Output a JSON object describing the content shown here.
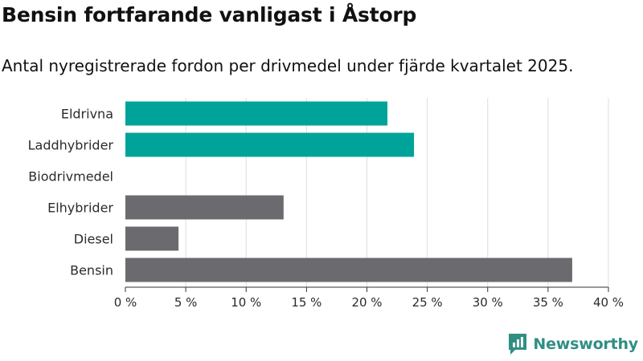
{
  "title": "Bensin fortfarande vanligast i Åstorp",
  "subtitle": "Antal nyregistrerade fordon per drivmedel under fjärde kvartalet 2025.",
  "brand": {
    "name": "Newsworthy",
    "color": "#2f8f83",
    "icon": "newsworthy-logo-icon"
  },
  "colors": {
    "electric": "#00a39a",
    "other": "#6b6a6f",
    "grid": "#dddddd",
    "axis": "#333333"
  },
  "chart_data": {
    "type": "bar",
    "orientation": "horizontal",
    "categories": [
      "Eldrivna",
      "Laddhybrider",
      "Biodrivmedel",
      "Elhybrider",
      "Diesel",
      "Bensin"
    ],
    "values": [
      21.7,
      23.9,
      0,
      13.1,
      4.4,
      37.0
    ],
    "groups": [
      "electric",
      "electric",
      "electric",
      "other",
      "other",
      "other"
    ],
    "xlim": [
      0,
      40
    ],
    "xticks": [
      0,
      5,
      10,
      15,
      20,
      25,
      30,
      35,
      40
    ],
    "xtick_labels": [
      "0 %",
      "5 %",
      "10 %",
      "15 %",
      "20 %",
      "25 %",
      "30 %",
      "35 %",
      "40 %"
    ],
    "grid": true,
    "title": "Bensin fortfarande vanligast i Åstorp",
    "xlabel": "",
    "ylabel": ""
  }
}
